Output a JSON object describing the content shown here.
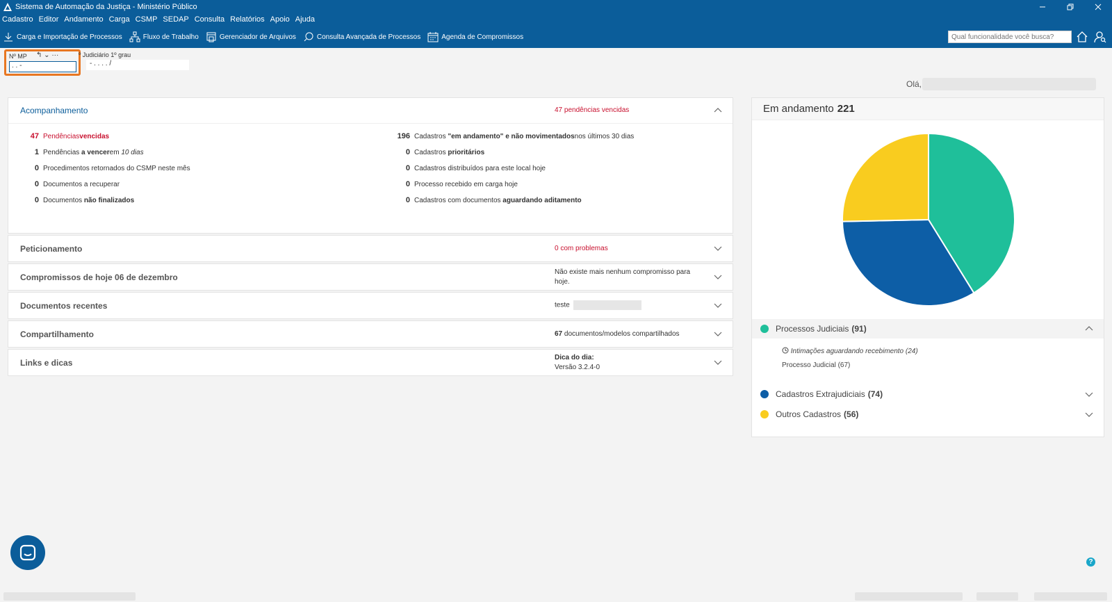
{
  "window": {
    "title": "Sistema de Automação da Justiça - Ministério Público",
    "icon": "app-triangle-icon"
  },
  "menu": [
    "Cadastro",
    "Editor",
    "Andamento",
    "Carga",
    "CSMP",
    "SEDAP",
    "Consulta",
    "Relatórios",
    "Apoio",
    "Ajuda"
  ],
  "toolbar": {
    "items": [
      {
        "label": "Carga e Importação de Processos",
        "icon": "download-icon"
      },
      {
        "label": "Fluxo de Trabalho",
        "icon": "workflow-icon"
      },
      {
        "label": "Gerenciador de Arquivos",
        "icon": "file-manager-icon"
      },
      {
        "label": "Consulta Avançada de Processos",
        "icon": "search-chat-icon"
      },
      {
        "label": "Agenda de Compromissos",
        "icon": "calendar-icon"
      }
    ],
    "search_placeholder": "Qual funcionalidade você busca?"
  },
  "fields": {
    "mp_label": "Nº MP",
    "mp_value": ".  .      -",
    "mp_icons": "↰ ⌄ ···",
    "jud_label": "º Judiciário  1º grau",
    "jud_value": "- .  . . .  /"
  },
  "greeting": "Olá,",
  "panels": {
    "acompanhamento": {
      "title": "Acompanhamento",
      "summary_count": "47",
      "summary_text": "pendências vencidas",
      "left": [
        {
          "num": "47",
          "text": "Pendências ",
          "bold": "vencidas",
          "tail": "",
          "red": true
        },
        {
          "num": "1",
          "text": "Pendências ",
          "bold": "a vencer",
          "tail": " em ",
          "italic": "10 dias"
        },
        {
          "num": "0",
          "text": "Procedimentos retornados do CSMP neste mês"
        },
        {
          "num": "0",
          "text": "Documentos a recuperar"
        },
        {
          "num": "0",
          "text": "Documentos ",
          "bold": "não finalizados"
        }
      ],
      "right": [
        {
          "num": "196",
          "text": "Cadastros ",
          "bold": "\"em andamento\" e não movimentados",
          "tail": " nos últimos 30 dias"
        },
        {
          "num": "0",
          "text": "Cadastros ",
          "bold": "prioritários"
        },
        {
          "num": "0",
          "text": "Cadastros distribuídos para este local hoje"
        },
        {
          "num": "0",
          "text": "Processo recebido em carga hoje"
        },
        {
          "num": "0",
          "text": "Cadastros com documentos ",
          "bold": "aguardando aditamento"
        }
      ]
    },
    "peticionamento": {
      "title": "Peticionamento",
      "count": "0",
      "text": "com problemas"
    },
    "compromissos": {
      "title": "Compromissos de hoje 06 de dezembro",
      "text": "Não existe mais nenhum compromisso para hoje."
    },
    "documentos": {
      "title": "Documentos recentes",
      "text": "teste"
    },
    "compartilhamento": {
      "title": "Compartilhamento",
      "count": "67",
      "text": "documentos/modelos compartilhados"
    },
    "links": {
      "title": "Links e dicas",
      "dica_label": "Dica do dia:",
      "dica_text": "Versão 3.2.4-0"
    }
  },
  "right_panel": {
    "title": "Em andamento",
    "total": "221",
    "legend": [
      {
        "name": "Processos Judiciais",
        "count": "(91)",
        "color": "#1fbf9a"
      },
      {
        "name": "Cadastros Extrajudiciais",
        "count": "(74)",
        "color": "#0d5ea6"
      },
      {
        "name": "Outros Cadastros",
        "count": "(56)",
        "color": "#f9cc1f"
      }
    ],
    "sub_items": {
      "intimacoes": "Intimações aguardando recebimento (24)",
      "processo": "Processo Judicial (67)"
    }
  },
  "chart_data": {
    "type": "pie",
    "categories": [
      "Processos Judiciais",
      "Cadastros Extrajudiciais",
      "Outros Cadastros"
    ],
    "values": [
      91,
      74,
      56
    ],
    "colors": [
      "#1fbf9a",
      "#0d5ea6",
      "#f9cc1f"
    ],
    "title": "Em andamento 221"
  },
  "help": "?"
}
